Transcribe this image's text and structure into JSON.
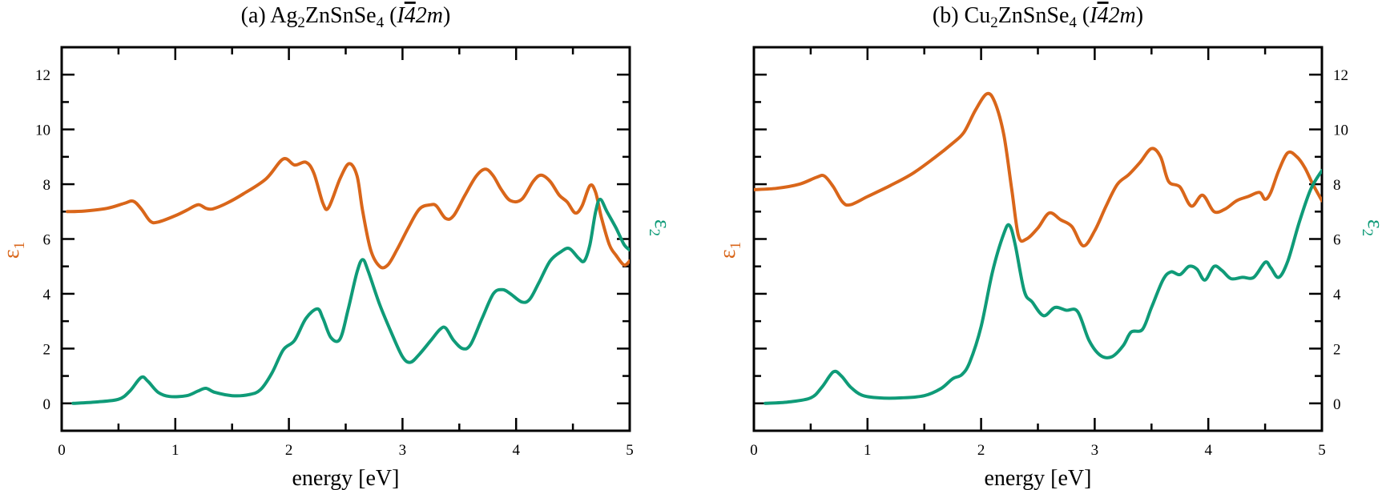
{
  "chart_data": [
    {
      "type": "line",
      "title": {
        "prefix": "(a) Ag",
        "sub1": "2",
        "mid": "ZnSnSe",
        "sub2": "4",
        "paren_open": " (",
        "italic_I": "I",
        "bar4": "4",
        "tail": "2m",
        "paren_close": ")"
      },
      "xlabel": "energy [eV]",
      "ylabel_left": {
        "main": "ε",
        "sub": "1"
      },
      "ylabel_right": {
        "main": "ε",
        "sub": "2"
      },
      "xlim": [
        0,
        5
      ],
      "ylim": [
        -1,
        13
      ],
      "xticks": [
        "0",
        "1",
        "2",
        "3",
        "4",
        "5"
      ],
      "yticks": [
        "0",
        "2",
        "4",
        "6",
        "8",
        "10",
        "12"
      ],
      "ytick_side": "left",
      "series": [
        {
          "role": "eps1",
          "color": "#d9661a",
          "points": [
            [
              0.05,
              7.0
            ],
            [
              0.2,
              7.02
            ],
            [
              0.4,
              7.12
            ],
            [
              0.55,
              7.3
            ],
            [
              0.63,
              7.38
            ],
            [
              0.7,
              7.1
            ],
            [
              0.78,
              6.65
            ],
            [
              0.85,
              6.62
            ],
            [
              1.0,
              6.85
            ],
            [
              1.1,
              7.05
            ],
            [
              1.2,
              7.25
            ],
            [
              1.27,
              7.12
            ],
            [
              1.33,
              7.1
            ],
            [
              1.45,
              7.3
            ],
            [
              1.6,
              7.65
            ],
            [
              1.8,
              8.2
            ],
            [
              1.95,
              8.92
            ],
            [
              2.05,
              8.7
            ],
            [
              2.15,
              8.8
            ],
            [
              2.22,
              8.4
            ],
            [
              2.3,
              7.3
            ],
            [
              2.35,
              7.15
            ],
            [
              2.45,
              8.2
            ],
            [
              2.53,
              8.75
            ],
            [
              2.6,
              8.3
            ],
            [
              2.65,
              7.0
            ],
            [
              2.72,
              5.6
            ],
            [
              2.8,
              5.0
            ],
            [
              2.87,
              5.05
            ],
            [
              2.95,
              5.6
            ],
            [
              3.05,
              6.4
            ],
            [
              3.15,
              7.1
            ],
            [
              3.25,
              7.25
            ],
            [
              3.3,
              7.2
            ],
            [
              3.38,
              6.75
            ],
            [
              3.45,
              6.85
            ],
            [
              3.55,
              7.6
            ],
            [
              3.65,
              8.3
            ],
            [
              3.73,
              8.55
            ],
            [
              3.8,
              8.3
            ],
            [
              3.87,
              7.8
            ],
            [
              3.95,
              7.4
            ],
            [
              4.05,
              7.45
            ],
            [
              4.15,
              8.1
            ],
            [
              4.22,
              8.33
            ],
            [
              4.3,
              8.1
            ],
            [
              4.38,
              7.6
            ],
            [
              4.45,
              7.35
            ],
            [
              4.52,
              6.95
            ],
            [
              4.58,
              7.2
            ],
            [
              4.65,
              7.95
            ],
            [
              4.7,
              7.7
            ],
            [
              4.75,
              6.8
            ],
            [
              4.82,
              5.8
            ],
            [
              4.88,
              5.4
            ],
            [
              4.95,
              5.05
            ],
            [
              5.0,
              5.2
            ]
          ]
        },
        {
          "role": "eps2",
          "color": "#0f9b78",
          "points": [
            [
              0.1,
              0.0
            ],
            [
              0.3,
              0.05
            ],
            [
              0.5,
              0.15
            ],
            [
              0.6,
              0.45
            ],
            [
              0.7,
              0.95
            ],
            [
              0.76,
              0.8
            ],
            [
              0.85,
              0.4
            ],
            [
              0.95,
              0.25
            ],
            [
              1.1,
              0.28
            ],
            [
              1.2,
              0.45
            ],
            [
              1.27,
              0.55
            ],
            [
              1.35,
              0.4
            ],
            [
              1.5,
              0.28
            ],
            [
              1.65,
              0.32
            ],
            [
              1.75,
              0.5
            ],
            [
              1.85,
              1.1
            ],
            [
              1.95,
              1.95
            ],
            [
              2.05,
              2.3
            ],
            [
              2.15,
              3.1
            ],
            [
              2.25,
              3.45
            ],
            [
              2.3,
              3.1
            ],
            [
              2.37,
              2.4
            ],
            [
              2.45,
              2.35
            ],
            [
              2.52,
              3.4
            ],
            [
              2.6,
              4.8
            ],
            [
              2.65,
              5.25
            ],
            [
              2.7,
              4.8
            ],
            [
              2.8,
              3.6
            ],
            [
              2.9,
              2.6
            ],
            [
              3.0,
              1.7
            ],
            [
              3.07,
              1.5
            ],
            [
              3.15,
              1.8
            ],
            [
              3.25,
              2.3
            ],
            [
              3.33,
              2.7
            ],
            [
              3.38,
              2.75
            ],
            [
              3.45,
              2.3
            ],
            [
              3.53,
              2.0
            ],
            [
              3.6,
              2.15
            ],
            [
              3.7,
              3.1
            ],
            [
              3.8,
              4.0
            ],
            [
              3.88,
              4.15
            ],
            [
              3.95,
              4.0
            ],
            [
              4.05,
              3.7
            ],
            [
              4.12,
              3.8
            ],
            [
              4.2,
              4.4
            ],
            [
              4.3,
              5.2
            ],
            [
              4.4,
              5.55
            ],
            [
              4.47,
              5.65
            ],
            [
              4.55,
              5.3
            ],
            [
              4.6,
              5.2
            ],
            [
              4.65,
              5.8
            ],
            [
              4.7,
              7.0
            ],
            [
              4.74,
              7.45
            ],
            [
              4.8,
              7.0
            ],
            [
              4.88,
              6.4
            ],
            [
              4.95,
              5.8
            ],
            [
              5.0,
              5.6
            ]
          ]
        }
      ]
    },
    {
      "type": "line",
      "title": {
        "prefix": "(b) Cu",
        "sub1": "2",
        "mid": "ZnSnSe",
        "sub2": "4",
        "paren_open": " (",
        "italic_I": "I",
        "bar4": "4",
        "tail": "2m",
        "paren_close": ")"
      },
      "xlabel": "energy [eV]",
      "ylabel_left": {
        "main": "ε",
        "sub": "1"
      },
      "ylabel_right": {
        "main": "ε",
        "sub": "2"
      },
      "xlim": [
        0,
        5
      ],
      "ylim": [
        -1,
        13
      ],
      "xticks": [
        "0",
        "1",
        "2",
        "3",
        "4",
        "5"
      ],
      "yticks": [
        "0",
        "2",
        "4",
        "6",
        "8",
        "10",
        "12"
      ],
      "ytick_side": "right",
      "series": [
        {
          "role": "eps1",
          "color": "#d9661a",
          "points": [
            [
              0.0,
              7.8
            ],
            [
              0.2,
              7.85
            ],
            [
              0.4,
              8.0
            ],
            [
              0.55,
              8.25
            ],
            [
              0.62,
              8.3
            ],
            [
              0.7,
              7.9
            ],
            [
              0.78,
              7.35
            ],
            [
              0.85,
              7.25
            ],
            [
              1.0,
              7.55
            ],
            [
              1.2,
              7.95
            ],
            [
              1.4,
              8.4
            ],
            [
              1.6,
              9.0
            ],
            [
              1.75,
              9.5
            ],
            [
              1.85,
              9.9
            ],
            [
              1.95,
              10.7
            ],
            [
              2.05,
              11.3
            ],
            [
              2.12,
              11.0
            ],
            [
              2.2,
              9.8
            ],
            [
              2.27,
              7.8
            ],
            [
              2.33,
              6.1
            ],
            [
              2.4,
              6.0
            ],
            [
              2.5,
              6.4
            ],
            [
              2.6,
              6.95
            ],
            [
              2.7,
              6.7
            ],
            [
              2.8,
              6.45
            ],
            [
              2.9,
              5.75
            ],
            [
              3.0,
              6.3
            ],
            [
              3.1,
              7.2
            ],
            [
              3.2,
              8.0
            ],
            [
              3.3,
              8.35
            ],
            [
              3.4,
              8.8
            ],
            [
              3.5,
              9.3
            ],
            [
              3.58,
              9.0
            ],
            [
              3.65,
              8.1
            ],
            [
              3.75,
              7.9
            ],
            [
              3.85,
              7.2
            ],
            [
              3.95,
              7.6
            ],
            [
              4.05,
              7.0
            ],
            [
              4.15,
              7.1
            ],
            [
              4.25,
              7.4
            ],
            [
              4.35,
              7.55
            ],
            [
              4.45,
              7.7
            ],
            [
              4.5,
              7.45
            ],
            [
              4.55,
              7.7
            ],
            [
              4.62,
              8.5
            ],
            [
              4.7,
              9.15
            ],
            [
              4.78,
              9.0
            ],
            [
              4.85,
              8.6
            ],
            [
              4.92,
              8.0
            ],
            [
              5.0,
              7.4
            ]
          ]
        },
        {
          "role": "eps2",
          "color": "#0f9b78",
          "points": [
            [
              0.1,
              0.0
            ],
            [
              0.3,
              0.05
            ],
            [
              0.5,
              0.2
            ],
            [
              0.6,
              0.6
            ],
            [
              0.7,
              1.15
            ],
            [
              0.77,
              1.0
            ],
            [
              0.85,
              0.6
            ],
            [
              0.95,
              0.3
            ],
            [
              1.1,
              0.2
            ],
            [
              1.3,
              0.2
            ],
            [
              1.5,
              0.28
            ],
            [
              1.65,
              0.55
            ],
            [
              1.75,
              0.9
            ],
            [
              1.83,
              1.05
            ],
            [
              1.9,
              1.5
            ],
            [
              2.0,
              2.8
            ],
            [
              2.1,
              4.8
            ],
            [
              2.2,
              6.2
            ],
            [
              2.25,
              6.5
            ],
            [
              2.3,
              5.8
            ],
            [
              2.38,
              4.1
            ],
            [
              2.45,
              3.7
            ],
            [
              2.55,
              3.2
            ],
            [
              2.65,
              3.5
            ],
            [
              2.75,
              3.4
            ],
            [
              2.85,
              3.35
            ],
            [
              2.95,
              2.3
            ],
            [
              3.05,
              1.75
            ],
            [
              3.15,
              1.7
            ],
            [
              3.25,
              2.1
            ],
            [
              3.32,
              2.6
            ],
            [
              3.42,
              2.7
            ],
            [
              3.5,
              3.5
            ],
            [
              3.6,
              4.5
            ],
            [
              3.67,
              4.8
            ],
            [
              3.75,
              4.7
            ],
            [
              3.83,
              5.0
            ],
            [
              3.9,
              4.9
            ],
            [
              3.97,
              4.5
            ],
            [
              4.05,
              5.0
            ],
            [
              4.12,
              4.85
            ],
            [
              4.2,
              4.55
            ],
            [
              4.3,
              4.6
            ],
            [
              4.4,
              4.6
            ],
            [
              4.5,
              5.15
            ],
            [
              4.55,
              4.95
            ],
            [
              4.62,
              4.6
            ],
            [
              4.7,
              5.2
            ],
            [
              4.8,
              6.6
            ],
            [
              4.9,
              7.8
            ],
            [
              5.0,
              8.5
            ]
          ]
        }
      ]
    }
  ]
}
